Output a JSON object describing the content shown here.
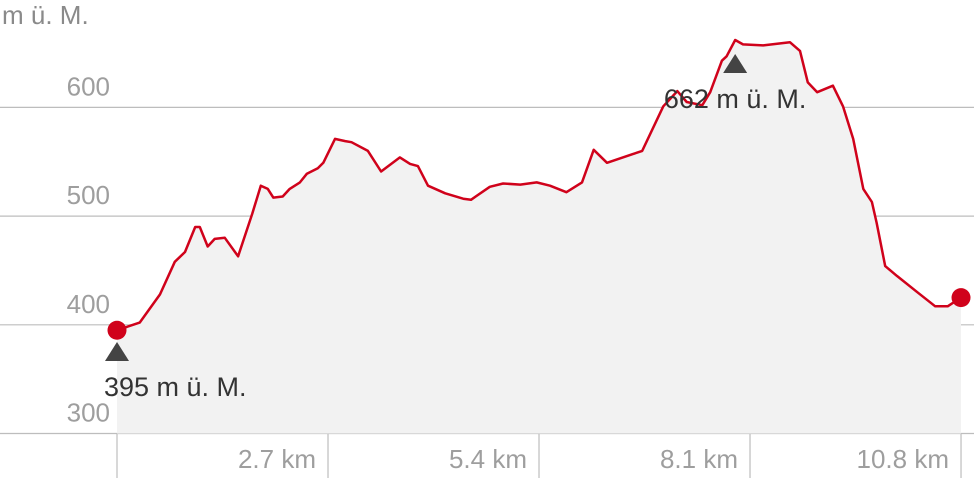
{
  "chart_data": {
    "type": "area",
    "ylabel": "m ü. M.",
    "xlabel": "",
    "x_unit": "km",
    "xlim": [
      0,
      10.8
    ],
    "ylim": [
      300,
      662
    ],
    "yticks": [
      300,
      400,
      500,
      600
    ],
    "ytick_labels": [
      "300",
      "400",
      "500",
      "600"
    ],
    "xticks": [
      2.7,
      5.4,
      8.1,
      10.8
    ],
    "xtick_labels": [
      "2.7 km",
      "5.4 km",
      "8.1 km",
      "10.8 km"
    ],
    "grid": true,
    "colors": {
      "line": "#d0021b",
      "fill": "#f2f2f2",
      "grid": "#bdbdbd",
      "marker": "#444444"
    },
    "series": [
      {
        "x": [
          0,
          0.29,
          0.55,
          0.74,
          0.87,
          1.0,
          1.06,
          1.16,
          1.25,
          1.38,
          1.55,
          1.73,
          1.84,
          1.93,
          2.0,
          2.12,
          2.21,
          2.34,
          2.43,
          2.57,
          2.64,
          2.79,
          2.92,
          3.0,
          3.21,
          3.38,
          3.62,
          3.75,
          3.85,
          3.98,
          4.2,
          4.43,
          4.53,
          4.59,
          4.77,
          4.94,
          5.16,
          5.37,
          5.54,
          5.75,
          5.95,
          6.1,
          6.27,
          6.6,
          6.72,
          6.99,
          7.17,
          7.29,
          7.49,
          7.59,
          7.74,
          7.8,
          7.91,
          8.01,
          8.27,
          8.61,
          8.74,
          8.84,
          8.96,
          9.16,
          9.29,
          9.42,
          9.55,
          9.66,
          9.72,
          9.83,
          9.98,
          10.24,
          10.47,
          10.63,
          10.8
        ],
        "y": [
          395,
          402,
          428,
          458,
          467,
          490,
          490,
          472,
          479,
          480,
          463,
          502,
          528,
          525,
          517,
          518,
          525,
          531,
          539,
          544,
          549,
          571,
          569,
          568,
          560,
          541,
          554,
          548,
          546,
          528,
          521,
          516,
          515,
          518,
          527,
          530,
          529,
          531,
          528,
          522,
          531,
          561,
          549,
          557,
          560,
          601,
          615,
          605,
          602,
          614,
          643,
          647,
          662,
          658,
          657,
          660,
          652,
          623,
          614,
          620,
          601,
          571,
          525,
          513,
          494,
          454,
          445,
          430,
          417,
          417,
          425
        ]
      }
    ],
    "annotations": [
      {
        "kind": "min",
        "x": 0,
        "y": 395,
        "label": "395 m ü. M."
      },
      {
        "kind": "max",
        "x": 7.91,
        "y": 662,
        "label": "662 m ü. M."
      }
    ]
  }
}
